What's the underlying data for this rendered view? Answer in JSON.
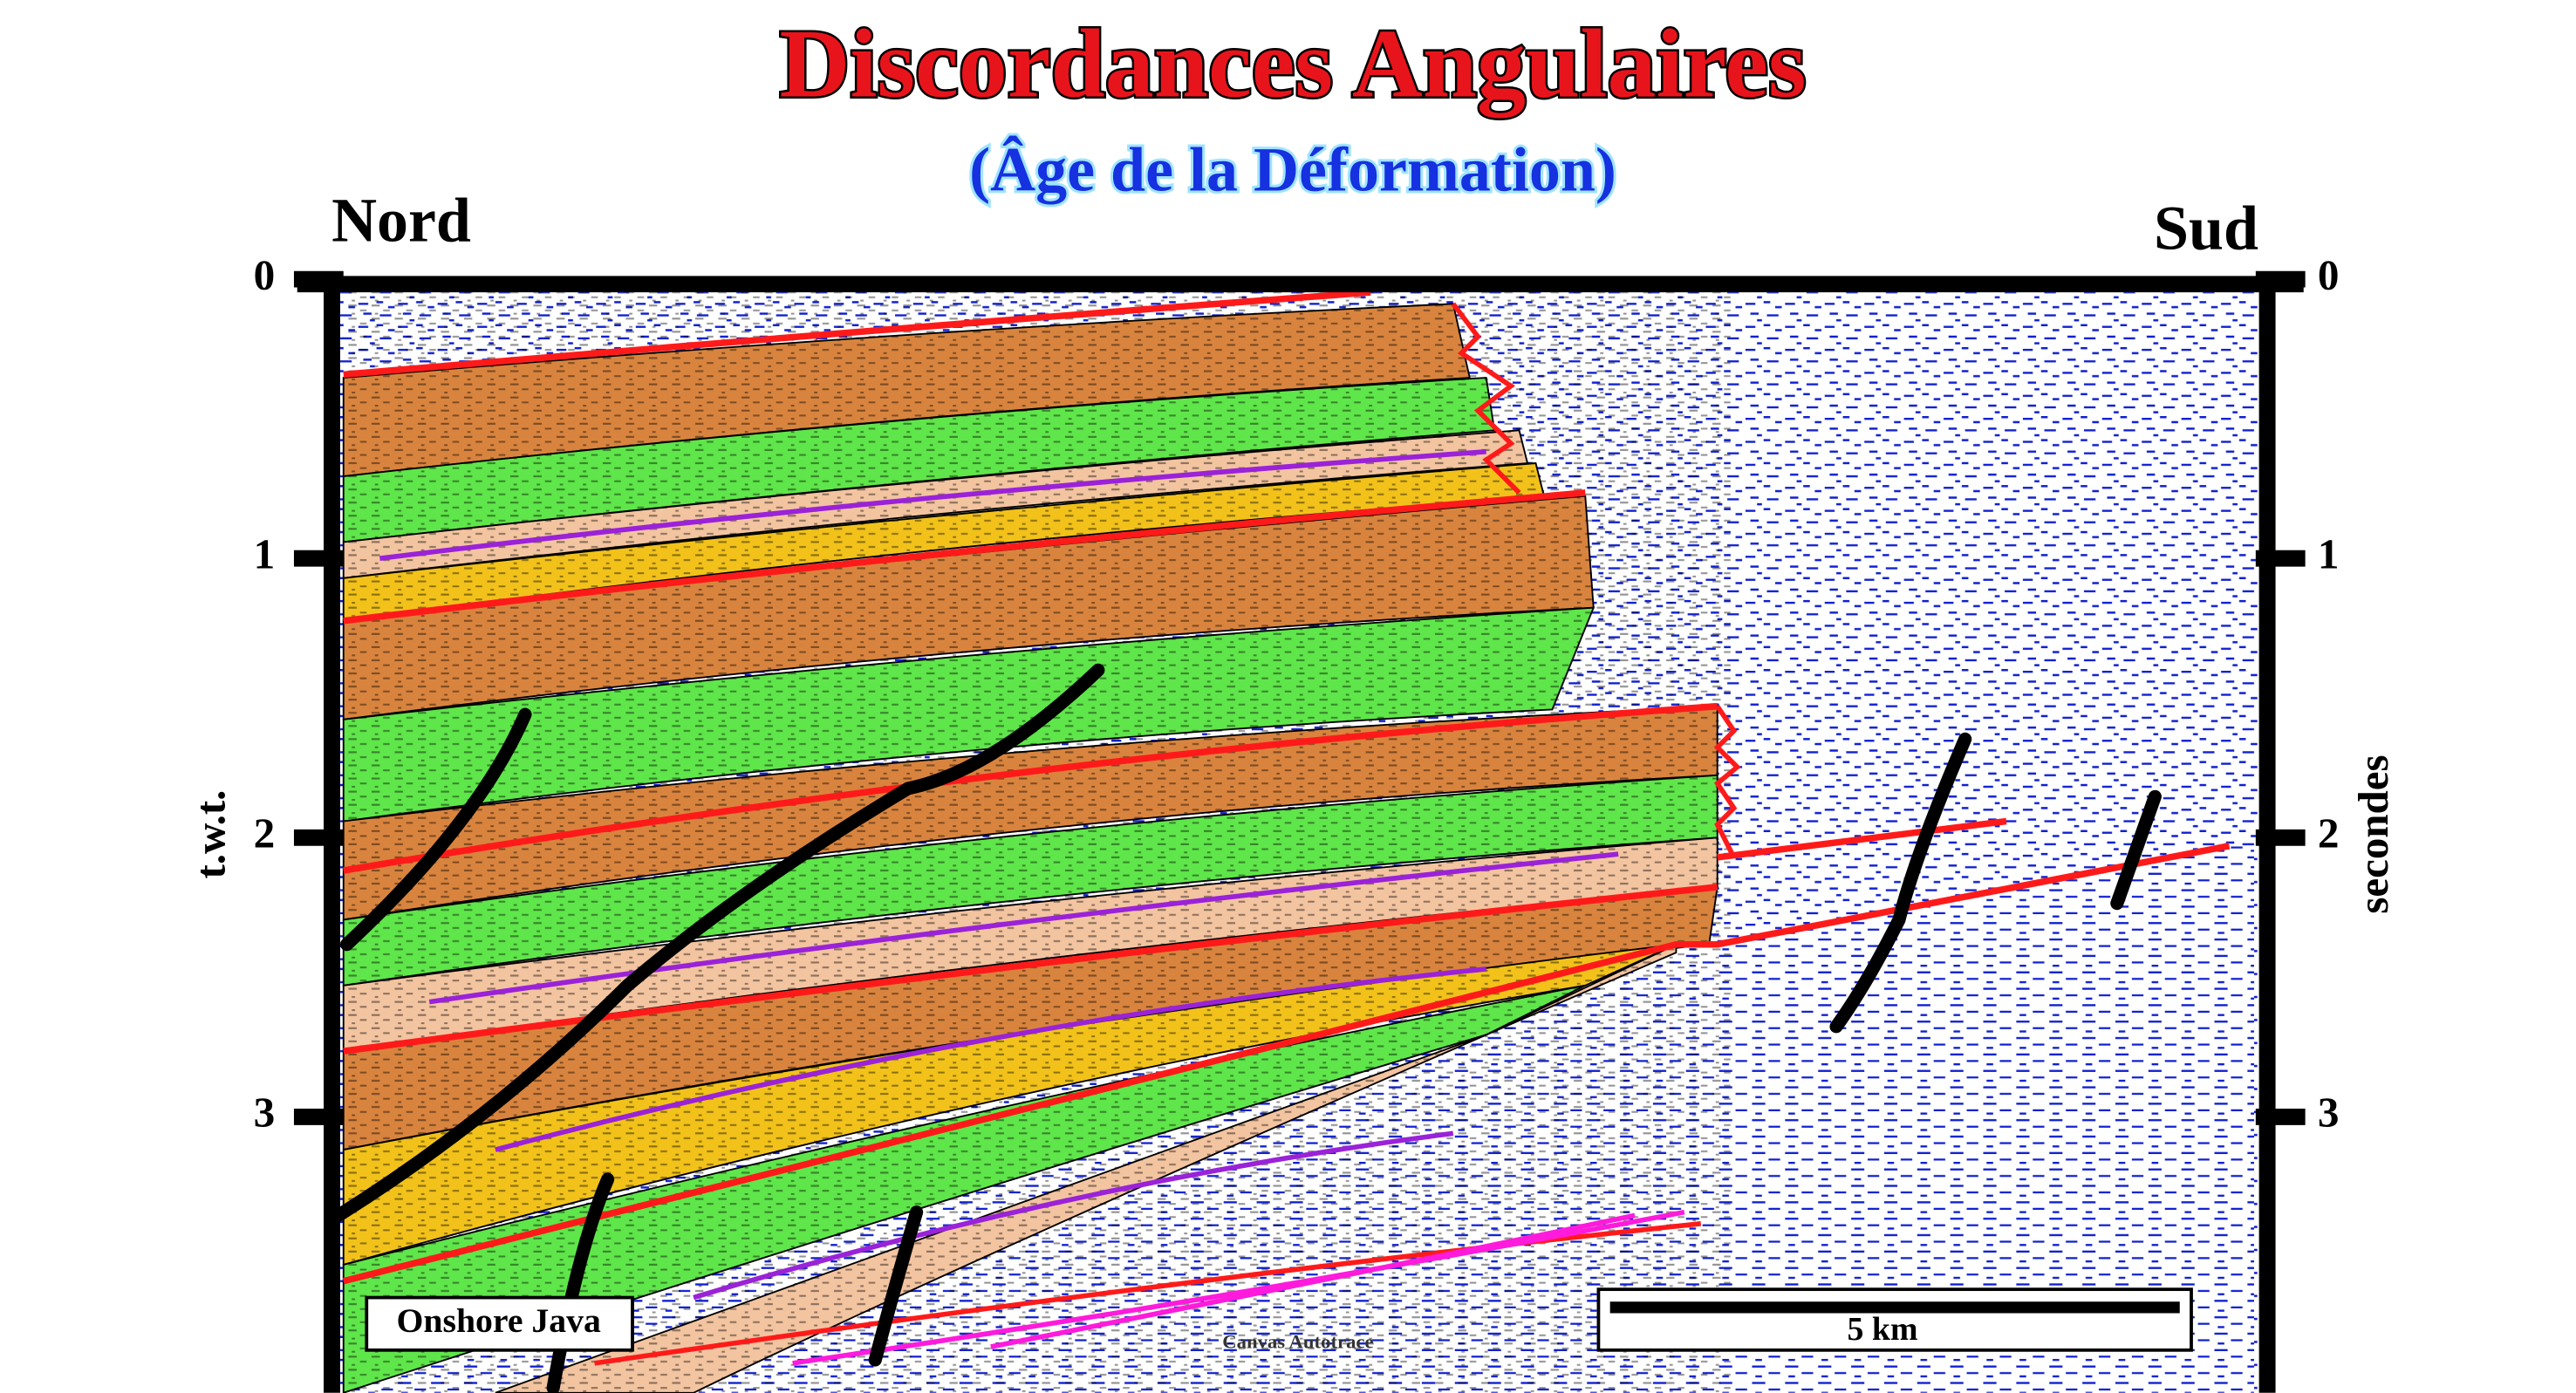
{
  "header": {
    "title": "Discordances Angulaires",
    "subtitle": "(Âge de la Déformation)"
  },
  "orientation": {
    "left": "Nord",
    "right": "Sud"
  },
  "axes": {
    "left_label": "t.w.t.",
    "right_label": "secondes",
    "ticks": [
      0,
      1,
      2,
      3
    ]
  },
  "inset": {
    "location": "Onshore Java",
    "scale_bar": "5 km",
    "credit": "Canvas Autotrace"
  }
}
